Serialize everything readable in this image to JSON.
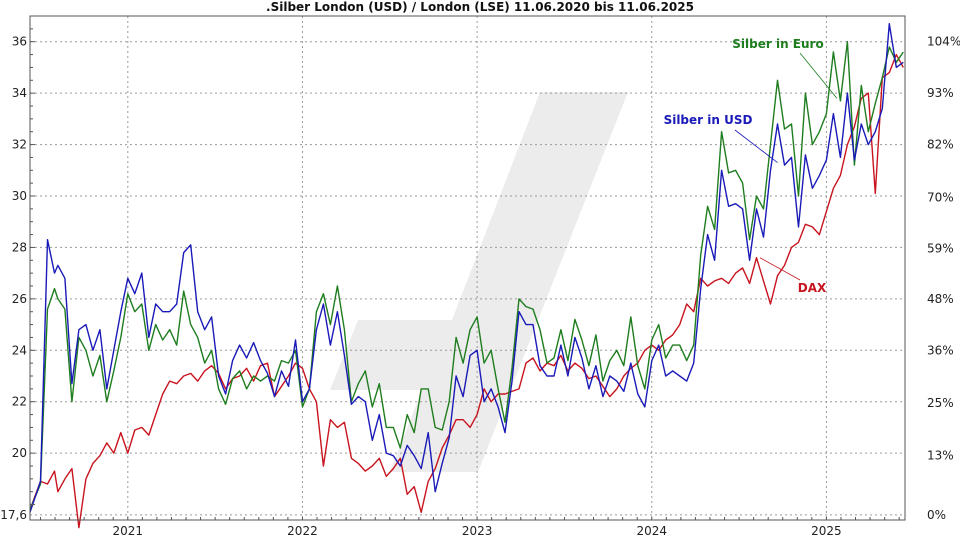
{
  "chart_data": {
    "type": "line",
    "title": ".Silber London (USD) / London (LSE) 11.06.2020 bis 11.06.2025",
    "xlabel": "",
    "ylabel": "",
    "x_range": [
      2020.44,
      2025.45
    ],
    "ylim": [
      17.4,
      37.0
    ],
    "left_ticks": [
      {
        "value": 17.6,
        "label": "17,6"
      },
      {
        "value": 20,
        "label": "20"
      },
      {
        "value": 22,
        "label": "22"
      },
      {
        "value": 24,
        "label": "24"
      },
      {
        "value": 26,
        "label": "26"
      },
      {
        "value": 28,
        "label": "28"
      },
      {
        "value": 30,
        "label": "30"
      },
      {
        "value": 32,
        "label": "32"
      },
      {
        "value": 34,
        "label": "34"
      },
      {
        "value": 36,
        "label": "36"
      }
    ],
    "right_ticks": [
      {
        "value": 17.6,
        "label": "0%"
      },
      {
        "value": 19.9,
        "label": "13%"
      },
      {
        "value": 21.95,
        "label": "25%"
      },
      {
        "value": 24.0,
        "label": "36%"
      },
      {
        "value": 26.0,
        "label": "48%"
      },
      {
        "value": 27.95,
        "label": "59%"
      },
      {
        "value": 29.95,
        "label": "70%"
      },
      {
        "value": 32.0,
        "label": "82%"
      },
      {
        "value": 34.0,
        "label": "93%"
      },
      {
        "value": 36.0,
        "label": "104%"
      }
    ],
    "x_ticks": [
      {
        "value": 2021.0,
        "label": "2021"
      },
      {
        "value": 2022.0,
        "label": "2022"
      },
      {
        "value": 2023.0,
        "label": "2023"
      },
      {
        "value": 2024.0,
        "label": "2024"
      },
      {
        "value": 2025.0,
        "label": "2025"
      }
    ],
    "grid": true,
    "legend": "inline-labels",
    "series": [
      {
        "name": "Silber in Euro",
        "color": "#1e7d1e",
        "x": [
          2020.44,
          2020.5,
          2020.54,
          2020.58,
          2020.6,
          2020.64,
          2020.68,
          2020.72,
          2020.76,
          2020.8,
          2020.84,
          2020.88,
          2020.92,
          2020.96,
          2021.0,
          2021.04,
          2021.08,
          2021.12,
          2021.16,
          2021.2,
          2021.24,
          2021.28,
          2021.32,
          2021.36,
          2021.4,
          2021.44,
          2021.48,
          2021.52,
          2021.56,
          2021.6,
          2021.64,
          2021.68,
          2021.72,
          2021.76,
          2021.8,
          2021.84,
          2021.88,
          2021.92,
          2021.96,
          2022.0,
          2022.04,
          2022.08,
          2022.12,
          2022.16,
          2022.2,
          2022.24,
          2022.28,
          2022.32,
          2022.36,
          2022.4,
          2022.44,
          2022.48,
          2022.52,
          2022.56,
          2022.6,
          2022.64,
          2022.68,
          2022.72,
          2022.76,
          2022.8,
          2022.84,
          2022.88,
          2022.92,
          2022.96,
          2023.0,
          2023.04,
          2023.08,
          2023.12,
          2023.16,
          2023.2,
          2023.24,
          2023.28,
          2023.32,
          2023.36,
          2023.4,
          2023.44,
          2023.48,
          2023.52,
          2023.56,
          2023.6,
          2023.64,
          2023.68,
          2023.72,
          2023.76,
          2023.8,
          2023.84,
          2023.88,
          2023.92,
          2023.96,
          2024.0,
          2024.04,
          2024.08,
          2024.12,
          2024.16,
          2024.2,
          2024.24,
          2024.28,
          2024.32,
          2024.36,
          2024.4,
          2024.44,
          2024.48,
          2024.52,
          2024.56,
          2024.6,
          2024.64,
          2024.68,
          2024.72,
          2024.76,
          2024.8,
          2024.84,
          2024.88,
          2024.92,
          2024.96,
          2025.0,
          2025.04,
          2025.08,
          2025.12,
          2025.16,
          2025.2,
          2025.24,
          2025.28,
          2025.32,
          2025.36,
          2025.4,
          2025.44
        ],
        "values": [
          17.8,
          18.8,
          25.6,
          26.4,
          26.0,
          25.6,
          22.0,
          24.5,
          24.0,
          23.0,
          23.8,
          22.0,
          23.2,
          24.5,
          26.2,
          25.5,
          25.8,
          24.0,
          25.0,
          24.4,
          24.8,
          24.2,
          26.3,
          25.0,
          24.5,
          23.5,
          24.0,
          22.5,
          21.9,
          22.9,
          23.2,
          22.5,
          23.0,
          22.8,
          23.0,
          22.8,
          23.6,
          23.5,
          24.0,
          21.8,
          22.5,
          25.5,
          26.2,
          25.0,
          26.5,
          24.8,
          22.0,
          22.7,
          23.2,
          21.8,
          22.7,
          21.0,
          21.0,
          20.2,
          21.5,
          20.8,
          22.5,
          22.5,
          21.0,
          20.9,
          22.0,
          24.5,
          23.5,
          24.8,
          25.3,
          23.5,
          24.0,
          22.5,
          21.2,
          23.3,
          26.0,
          25.7,
          25.6,
          24.8,
          23.5,
          23.7,
          24.8,
          23.6,
          25.2,
          24.4,
          23.4,
          24.6,
          22.8,
          23.6,
          24.0,
          23.4,
          25.3,
          23.4,
          22.5,
          24.4,
          25.0,
          23.7,
          24.2,
          24.2,
          23.6,
          24.2,
          27.7,
          29.6,
          28.7,
          32.5,
          30.9,
          31.0,
          30.5,
          28.3,
          30.0,
          29.5,
          32.0,
          34.5,
          32.6,
          32.8,
          30.0,
          34.0,
          32.0,
          32.5,
          33.2,
          35.6,
          33.7,
          36.0,
          31.2,
          34.3,
          32.5,
          33.6,
          34.6,
          35.8,
          35.2,
          35.6
        ]
      },
      {
        "name": "Silber in USD",
        "color": "#1a1ab8",
        "x": [
          2020.44,
          2020.5,
          2020.54,
          2020.58,
          2020.6,
          2020.64,
          2020.68,
          2020.72,
          2020.76,
          2020.8,
          2020.84,
          2020.88,
          2020.92,
          2020.96,
          2021.0,
          2021.04,
          2021.08,
          2021.12,
          2021.16,
          2021.2,
          2021.24,
          2021.28,
          2021.32,
          2021.36,
          2021.4,
          2021.44,
          2021.48,
          2021.52,
          2021.56,
          2021.6,
          2021.64,
          2021.68,
          2021.72,
          2021.76,
          2021.8,
          2021.84,
          2021.88,
          2021.92,
          2021.96,
          2022.0,
          2022.04,
          2022.08,
          2022.12,
          2022.16,
          2022.2,
          2022.24,
          2022.28,
          2022.32,
          2022.36,
          2022.4,
          2022.44,
          2022.48,
          2022.52,
          2022.56,
          2022.6,
          2022.64,
          2022.68,
          2022.72,
          2022.76,
          2022.8,
          2022.84,
          2022.88,
          2022.92,
          2022.96,
          2023.0,
          2023.04,
          2023.08,
          2023.12,
          2023.16,
          2023.2,
          2023.24,
          2023.28,
          2023.32,
          2023.36,
          2023.4,
          2023.44,
          2023.48,
          2023.52,
          2023.56,
          2023.6,
          2023.64,
          2023.68,
          2023.72,
          2023.76,
          2023.8,
          2023.84,
          2023.88,
          2023.92,
          2023.96,
          2024.0,
          2024.04,
          2024.08,
          2024.12,
          2024.16,
          2024.2,
          2024.24,
          2024.28,
          2024.32,
          2024.36,
          2024.4,
          2024.44,
          2024.48,
          2024.52,
          2024.56,
          2024.6,
          2024.64,
          2024.68,
          2024.72,
          2024.76,
          2024.8,
          2024.84,
          2024.88,
          2024.92,
          2024.96,
          2025.0,
          2025.04,
          2025.08,
          2025.12,
          2025.16,
          2025.2,
          2025.24,
          2025.28,
          2025.32,
          2025.36,
          2025.4,
          2025.44
        ],
        "values": [
          17.7,
          18.9,
          28.3,
          27.0,
          27.3,
          26.8,
          22.7,
          24.8,
          25.0,
          24.0,
          24.8,
          22.5,
          24.0,
          25.5,
          26.8,
          26.2,
          27.0,
          24.5,
          25.8,
          25.5,
          25.5,
          25.8,
          27.8,
          28.1,
          25.5,
          24.8,
          25.3,
          23.0,
          22.3,
          23.6,
          24.2,
          23.7,
          24.3,
          23.6,
          23.1,
          22.2,
          23.2,
          22.6,
          24.4,
          22.0,
          22.5,
          24.8,
          25.8,
          24.2,
          25.5,
          23.8,
          21.9,
          22.2,
          22.0,
          20.5,
          21.5,
          20.0,
          19.9,
          19.5,
          20.3,
          19.9,
          19.4,
          20.8,
          18.5,
          19.6,
          20.6,
          23.0,
          22.2,
          23.8,
          24.0,
          22.0,
          22.5,
          21.8,
          20.8,
          22.8,
          25.5,
          25.0,
          25.0,
          23.4,
          23.0,
          23.0,
          24.2,
          23.0,
          24.5,
          23.7,
          22.5,
          23.4,
          22.2,
          23.0,
          22.8,
          22.4,
          23.5,
          22.3,
          21.8,
          23.6,
          24.2,
          23.0,
          23.2,
          23.0,
          22.8,
          23.5,
          26.4,
          28.5,
          27.5,
          31.0,
          29.6,
          29.7,
          29.5,
          27.5,
          29.5,
          28.4,
          31.0,
          32.8,
          31.2,
          31.5,
          28.8,
          31.6,
          30.3,
          30.8,
          31.4,
          33.2,
          31.5,
          34.0,
          31.4,
          32.8,
          32.0,
          32.5,
          33.4,
          36.7,
          35.0,
          35.2
        ]
      },
      {
        "name": "DAX",
        "color": "#c8141e",
        "x": [
          2020.44,
          2020.5,
          2020.54,
          2020.58,
          2020.6,
          2020.64,
          2020.68,
          2020.72,
          2020.76,
          2020.8,
          2020.84,
          2020.88,
          2020.92,
          2020.96,
          2021.0,
          2021.04,
          2021.08,
          2021.12,
          2021.16,
          2021.2,
          2021.24,
          2021.28,
          2021.32,
          2021.36,
          2021.4,
          2021.44,
          2021.48,
          2021.52,
          2021.56,
          2021.6,
          2021.64,
          2021.68,
          2021.72,
          2021.76,
          2021.8,
          2021.84,
          2021.88,
          2021.92,
          2021.96,
          2022.0,
          2022.04,
          2022.08,
          2022.12,
          2022.16,
          2022.2,
          2022.24,
          2022.28,
          2022.32,
          2022.36,
          2022.4,
          2022.44,
          2022.48,
          2022.52,
          2022.56,
          2022.6,
          2022.64,
          2022.68,
          2022.72,
          2022.76,
          2022.8,
          2022.84,
          2022.88,
          2022.92,
          2022.96,
          2023.0,
          2023.04,
          2023.08,
          2023.12,
          2023.16,
          2023.2,
          2023.24,
          2023.28,
          2023.32,
          2023.36,
          2023.4,
          2023.44,
          2023.48,
          2023.52,
          2023.56,
          2023.6,
          2023.64,
          2023.68,
          2023.72,
          2023.76,
          2023.8,
          2023.84,
          2023.88,
          2023.92,
          2023.96,
          2024.0,
          2024.04,
          2024.08,
          2024.12,
          2024.16,
          2024.2,
          2024.24,
          2024.28,
          2024.32,
          2024.36,
          2024.4,
          2024.44,
          2024.48,
          2024.52,
          2024.56,
          2024.6,
          2024.64,
          2024.68,
          2024.72,
          2024.76,
          2024.8,
          2024.84,
          2024.88,
          2024.92,
          2024.96,
          2025.0,
          2025.04,
          2025.08,
          2025.12,
          2025.16,
          2025.2,
          2025.24,
          2025.28,
          2025.32,
          2025.36,
          2025.4,
          2025.44
        ],
        "values": [
          17.8,
          18.9,
          18.8,
          19.3,
          18.5,
          19.0,
          19.4,
          17.1,
          19.0,
          19.6,
          19.9,
          20.4,
          20.0,
          20.8,
          20.0,
          20.9,
          21.0,
          20.7,
          21.5,
          22.3,
          22.8,
          22.7,
          23.0,
          23.1,
          22.8,
          23.2,
          23.4,
          23.1,
          22.5,
          22.9,
          23.0,
          23.3,
          22.8,
          23.4,
          23.5,
          22.2,
          22.6,
          23.0,
          23.5,
          23.3,
          22.5,
          22.0,
          19.5,
          21.3,
          21.0,
          21.2,
          19.8,
          19.6,
          19.3,
          19.5,
          19.8,
          19.1,
          19.4,
          19.8,
          18.4,
          18.7,
          17.7,
          18.9,
          19.4,
          20.2,
          20.7,
          21.3,
          21.3,
          21.0,
          21.5,
          22.5,
          22.0,
          22.3,
          22.3,
          22.4,
          22.5,
          23.5,
          23.7,
          23.2,
          23.5,
          23.4,
          23.8,
          23.2,
          23.5,
          23.3,
          22.9,
          23.0,
          22.6,
          22.2,
          22.5,
          23.0,
          23.3,
          23.5,
          24.0,
          24.2,
          24.0,
          24.4,
          24.6,
          25.0,
          25.8,
          25.5,
          26.8,
          26.5,
          26.7,
          26.8,
          26.6,
          27.0,
          27.2,
          26.6,
          27.6,
          26.7,
          25.8,
          26.9,
          27.3,
          28.0,
          28.2,
          28.9,
          28.8,
          28.5,
          29.4,
          30.3,
          30.8,
          32.0,
          32.7,
          33.8,
          34.0,
          30.1,
          34.6,
          34.8,
          35.5,
          35.0
        ]
      }
    ],
    "annotations": [
      {
        "text": "Silber in Euro",
        "series": 0
      },
      {
        "text": "Silber in USD",
        "series": 1
      },
      {
        "text": "DAX",
        "series": 2
      }
    ]
  }
}
